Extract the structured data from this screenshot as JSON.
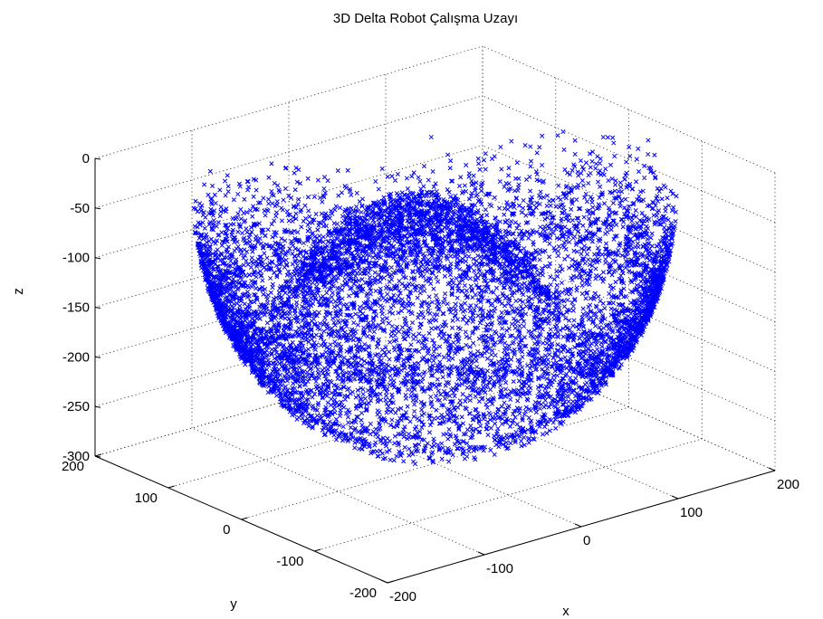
{
  "chart_data": {
    "type": "scatter",
    "title": "3D Delta Robot  Çalışma Uzayı",
    "xlabel": "x",
    "ylabel": "y",
    "zlabel": "z",
    "marker": "x",
    "xlim": [
      -200,
      200
    ],
    "ylim": [
      -200,
      200
    ],
    "zlim": [
      -300,
      0
    ],
    "xticks": [
      "-200",
      "-100",
      "0",
      "100",
      "200"
    ],
    "yticks": [
      "-200",
      "-100",
      "0",
      "100",
      "200"
    ],
    "zticks": [
      "-300",
      "-250",
      "-200",
      "-150",
      "-100",
      "-50",
      "0"
    ],
    "grid": true,
    "series": [
      {
        "color": "#0000ff",
        "shape": "bowl",
        "radius": 200,
        "z_bottom": -280,
        "z_top": -30
      }
    ]
  }
}
